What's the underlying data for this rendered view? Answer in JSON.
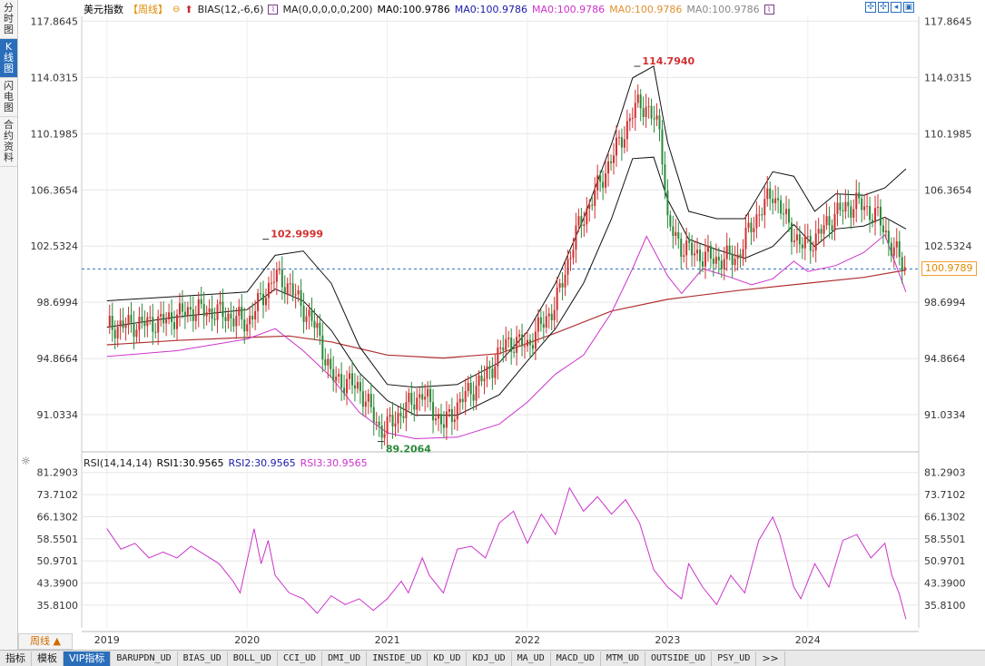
{
  "sidebar": {
    "tabs": [
      {
        "label": "分时图",
        "active": false
      },
      {
        "label": "K线图",
        "active": true
      },
      {
        "label": "闪电图",
        "active": false
      },
      {
        "label": "合约资料",
        "active": false
      }
    ]
  },
  "legend": {
    "symbol": "美元指数",
    "period": "【周线】",
    "bias_label": "BIAS(12,-6,6)",
    "ma_label": "MA(0,0,0,0,0,200)",
    "ma_values": [
      {
        "text": "MA0:100.9786",
        "color": "#000000"
      },
      {
        "text": "MA0:100.9786",
        "color": "#1a1aa8"
      },
      {
        "text": "MA0:100.9786",
        "color": "#cc33cc"
      },
      {
        "text": "MA0:100.9786",
        "color": "#e09030"
      },
      {
        "text": "MA0:100.9786",
        "color": "#888888"
      }
    ]
  },
  "rsi_legend": {
    "label": "RSI(14,14,14)",
    "items": [
      {
        "text": "RSI1:30.9565",
        "color": "#000000"
      },
      {
        "text": "RSI2:30.9565",
        "color": "#1a1aa8"
      },
      {
        "text": "RSI3:30.9565",
        "color": "#cc33cc"
      }
    ]
  },
  "current_price": "100.9789",
  "period_button": "周线 ▲",
  "bottom_tabs": [
    {
      "label": "指标",
      "mono": false,
      "active": false
    },
    {
      "label": "模板",
      "mono": false,
      "active": false
    },
    {
      "label": "VIP指标",
      "mono": false,
      "active": true
    },
    {
      "label": "BARUPDN_UD",
      "mono": true,
      "active": false
    },
    {
      "label": "BIAS_UD",
      "mono": true,
      "active": false
    },
    {
      "label": "BOLL_UD",
      "mono": true,
      "active": false
    },
    {
      "label": "CCI_UD",
      "mono": true,
      "active": false
    },
    {
      "label": "DMI_UD",
      "mono": true,
      "active": false
    },
    {
      "label": "INSIDE_UD",
      "mono": true,
      "active": false
    },
    {
      "label": "KD_UD",
      "mono": true,
      "active": false
    },
    {
      "label": "KDJ_UD",
      "mono": true,
      "active": false
    },
    {
      "label": "MA_UD",
      "mono": true,
      "active": false
    },
    {
      "label": "MACD_UD",
      "mono": true,
      "active": false
    },
    {
      "label": "MTM_UD",
      "mono": true,
      "active": false
    },
    {
      "label": "OUTSIDE_UD",
      "mono": true,
      "active": false
    },
    {
      "label": "PSY_UD",
      "mono": true,
      "active": false
    },
    {
      "label": ">>",
      "mono": false,
      "active": false
    }
  ],
  "colors": {
    "up": "#d03030",
    "down": "#2a8a3a",
    "rsi": "#cc33cc",
    "ma200": "#b03030",
    "grid": "#e6e6e6",
    "current_line": "#2a6ebb"
  },
  "chart_data": [
    {
      "type": "candlestick",
      "title": "美元指数",
      "x_labels": [
        "2019",
        "2020",
        "2021",
        "2022",
        "2023",
        "2024"
      ],
      "y_ticks": [
        "117.8645",
        "114.0315",
        "110.1985",
        "106.3654",
        "102.5324",
        "98.6994",
        "94.8664",
        "91.0334"
      ],
      "ylim": [
        88.5,
        118.2
      ],
      "annotations": [
        {
          "text": "102.9999",
          "label": "local high 2020"
        },
        {
          "text": "89.2064",
          "label": "low 2021"
        },
        {
          "text": "114.7940",
          "label": "high 2022"
        }
      ],
      "close_path": [
        [
          2019.0,
          97.0
        ],
        [
          2019.2,
          97.2
        ],
        [
          2019.4,
          97.4
        ],
        [
          2019.6,
          98.2
        ],
        [
          2019.8,
          98.0
        ],
        [
          2020.0,
          97.3
        ],
        [
          2020.1,
          98.9
        ],
        [
          2020.2,
          100.5
        ],
        [
          2020.3,
          99.8
        ],
        [
          2020.4,
          98.3
        ],
        [
          2020.5,
          96.8
        ],
        [
          2020.6,
          93.6
        ],
        [
          2020.8,
          92.9
        ],
        [
          2020.95,
          90.0
        ],
        [
          2021.0,
          90.2
        ],
        [
          2021.1,
          91.2
        ],
        [
          2021.25,
          92.5
        ],
        [
          2021.4,
          90.3
        ],
        [
          2021.55,
          92.3
        ],
        [
          2021.7,
          93.6
        ],
        [
          2021.85,
          96.0
        ],
        [
          2022.0,
          95.8
        ],
        [
          2022.2,
          98.5
        ],
        [
          2022.35,
          103.5
        ],
        [
          2022.5,
          106.5
        ],
        [
          2022.65,
          109.5
        ],
        [
          2022.8,
          112.5
        ],
        [
          2022.95,
          110.5
        ],
        [
          2023.0,
          104.0
        ],
        [
          2023.1,
          102.5
        ],
        [
          2023.2,
          102.0
        ],
        [
          2023.35,
          101.6
        ],
        [
          2023.5,
          101.8
        ],
        [
          2023.6,
          104.0
        ],
        [
          2023.75,
          106.2
        ],
        [
          2023.85,
          104.2
        ],
        [
          2023.95,
          102.5
        ],
        [
          2024.05,
          103.0
        ],
        [
          2024.2,
          104.8
        ],
        [
          2024.35,
          105.5
        ],
        [
          2024.5,
          104.5
        ],
        [
          2024.6,
          102.5
        ],
        [
          2024.7,
          100.98
        ]
      ],
      "ma200": [
        [
          2019.0,
          95.8
        ],
        [
          2019.5,
          96.1
        ],
        [
          2020.0,
          96.3
        ],
        [
          2020.3,
          96.4
        ],
        [
          2020.6,
          96.0
        ],
        [
          2021.0,
          95.1
        ],
        [
          2021.4,
          94.9
        ],
        [
          2021.8,
          95.2
        ],
        [
          2022.2,
          96.6
        ],
        [
          2022.6,
          98.1
        ],
        [
          2023.0,
          98.9
        ],
        [
          2023.5,
          99.5
        ],
        [
          2024.0,
          100.0
        ],
        [
          2024.4,
          100.4
        ],
        [
          2024.7,
          100.9
        ]
      ],
      "band_upper": [
        [
          2019.0,
          98.8
        ],
        [
          2019.5,
          99.1
        ],
        [
          2020.0,
          99.4
        ],
        [
          2020.2,
          101.9
        ],
        [
          2020.4,
          102.2
        ],
        [
          2020.6,
          100.0
        ],
        [
          2020.8,
          95.7
        ],
        [
          2021.0,
          93.1
        ],
        [
          2021.2,
          92.9
        ],
        [
          2021.5,
          93.1
        ],
        [
          2021.8,
          94.6
        ],
        [
          2022.0,
          96.7
        ],
        [
          2022.2,
          100.0
        ],
        [
          2022.4,
          104.4
        ],
        [
          2022.6,
          109.5
        ],
        [
          2022.75,
          114.0
        ],
        [
          2022.9,
          114.8
        ],
        [
          2023.0,
          109.6
        ],
        [
          2023.15,
          104.9
        ],
        [
          2023.35,
          104.4
        ],
        [
          2023.55,
          104.4
        ],
        [
          2023.75,
          107.6
        ],
        [
          2023.9,
          107.3
        ],
        [
          2024.05,
          104.9
        ],
        [
          2024.2,
          106.1
        ],
        [
          2024.4,
          106.0
        ],
        [
          2024.55,
          106.5
        ],
        [
          2024.7,
          107.8
        ]
      ],
      "band_mid": [
        [
          2019.0,
          97.0
        ],
        [
          2019.5,
          97.7
        ],
        [
          2020.0,
          98.2
        ],
        [
          2020.2,
          99.6
        ],
        [
          2020.4,
          98.8
        ],
        [
          2020.6,
          96.8
        ],
        [
          2020.8,
          93.9
        ],
        [
          2021.0,
          92.0
        ],
        [
          2021.2,
          91.0
        ],
        [
          2021.5,
          91.0
        ],
        [
          2021.8,
          92.4
        ],
        [
          2022.0,
          94.7
        ],
        [
          2022.2,
          96.9
        ],
        [
          2022.4,
          100.0
        ],
        [
          2022.6,
          104.4
        ],
        [
          2022.75,
          108.5
        ],
        [
          2022.9,
          108.6
        ],
        [
          2023.0,
          105.7
        ],
        [
          2023.15,
          103.0
        ],
        [
          2023.35,
          102.3
        ],
        [
          2023.55,
          101.7
        ],
        [
          2023.75,
          102.5
        ],
        [
          2023.9,
          104.0
        ],
        [
          2024.05,
          102.5
        ],
        [
          2024.2,
          103.7
        ],
        [
          2024.4,
          103.9
        ],
        [
          2024.55,
          104.5
        ],
        [
          2024.7,
          103.7
        ]
      ],
      "band_lower": [
        [
          2019.0,
          95.0
        ],
        [
          2019.5,
          95.4
        ],
        [
          2020.0,
          96.2
        ],
        [
          2020.2,
          96.9
        ],
        [
          2020.4,
          95.4
        ],
        [
          2020.6,
          93.6
        ],
        [
          2020.8,
          91.2
        ],
        [
          2021.0,
          89.8
        ],
        [
          2021.2,
          89.4
        ],
        [
          2021.5,
          89.5
        ],
        [
          2021.8,
          90.4
        ],
        [
          2022.0,
          91.9
        ],
        [
          2022.2,
          93.8
        ],
        [
          2022.4,
          95.1
        ],
        [
          2022.6,
          98.0
        ],
        [
          2022.75,
          101.0
        ],
        [
          2022.85,
          103.2
        ],
        [
          2023.0,
          100.5
        ],
        [
          2023.1,
          99.3
        ],
        [
          2023.25,
          101.0
        ],
        [
          2023.45,
          100.4
        ],
        [
          2023.6,
          99.9
        ],
        [
          2023.75,
          100.3
        ],
        [
          2023.9,
          101.5
        ],
        [
          2024.0,
          100.8
        ],
        [
          2024.2,
          101.2
        ],
        [
          2024.4,
          102.1
        ],
        [
          2024.55,
          103.3
        ],
        [
          2024.7,
          99.4
        ]
      ]
    },
    {
      "type": "line",
      "title": "RSI(14,14,14)",
      "y_ticks": [
        "81.2903",
        "73.7102",
        "66.1302",
        "58.5501",
        "50.9701",
        "43.3900",
        "35.8100"
      ],
      "ylim": [
        28.0,
        84.0
      ],
      "series": [
        {
          "name": "RSI3",
          "points": [
            [
              2019.0,
              62.0
            ],
            [
              2019.1,
              55.0
            ],
            [
              2019.2,
              57.0
            ],
            [
              2019.3,
              52.0
            ],
            [
              2019.4,
              54.0
            ],
            [
              2019.5,
              52.0
            ],
            [
              2019.6,
              56.0
            ],
            [
              2019.7,
              53.0
            ],
            [
              2019.8,
              50.0
            ],
            [
              2019.9,
              44.0
            ],
            [
              2019.95,
              40.0
            ],
            [
              2020.05,
              62.0
            ],
            [
              2020.1,
              50.0
            ],
            [
              2020.15,
              58.0
            ],
            [
              2020.2,
              46.0
            ],
            [
              2020.3,
              40.0
            ],
            [
              2020.4,
              38.0
            ],
            [
              2020.5,
              33.0
            ],
            [
              2020.6,
              39.0
            ],
            [
              2020.7,
              36.0
            ],
            [
              2020.8,
              38.0
            ],
            [
              2020.9,
              34.0
            ],
            [
              2021.0,
              38.0
            ],
            [
              2021.1,
              44.0
            ],
            [
              2021.15,
              40.0
            ],
            [
              2021.25,
              52.0
            ],
            [
              2021.3,
              46.0
            ],
            [
              2021.4,
              40.0
            ],
            [
              2021.5,
              55.0
            ],
            [
              2021.6,
              56.0
            ],
            [
              2021.7,
              52.0
            ],
            [
              2021.8,
              64.0
            ],
            [
              2021.9,
              68.0
            ],
            [
              2022.0,
              57.0
            ],
            [
              2022.1,
              67.0
            ],
            [
              2022.2,
              60.0
            ],
            [
              2022.3,
              76.0
            ],
            [
              2022.4,
              68.0
            ],
            [
              2022.5,
              73.0
            ],
            [
              2022.6,
              67.0
            ],
            [
              2022.7,
              72.0
            ],
            [
              2022.8,
              64.0
            ],
            [
              2022.9,
              48.0
            ],
            [
              2023.0,
              42.0
            ],
            [
              2023.1,
              38.0
            ],
            [
              2023.15,
              50.0
            ],
            [
              2023.25,
              42.0
            ],
            [
              2023.35,
              36.0
            ],
            [
              2023.45,
              46.0
            ],
            [
              2023.55,
              40.0
            ],
            [
              2023.65,
              58.0
            ],
            [
              2023.75,
              66.0
            ],
            [
              2023.8,
              60.0
            ],
            [
              2023.9,
              42.0
            ],
            [
              2023.95,
              38.0
            ],
            [
              2024.05,
              50.0
            ],
            [
              2024.15,
              42.0
            ],
            [
              2024.25,
              58.0
            ],
            [
              2024.35,
              60.0
            ],
            [
              2024.45,
              52.0
            ],
            [
              2024.55,
              57.0
            ],
            [
              2024.6,
              46.0
            ],
            [
              2024.65,
              40.0
            ],
            [
              2024.7,
              31.0
            ]
          ]
        }
      ]
    }
  ]
}
